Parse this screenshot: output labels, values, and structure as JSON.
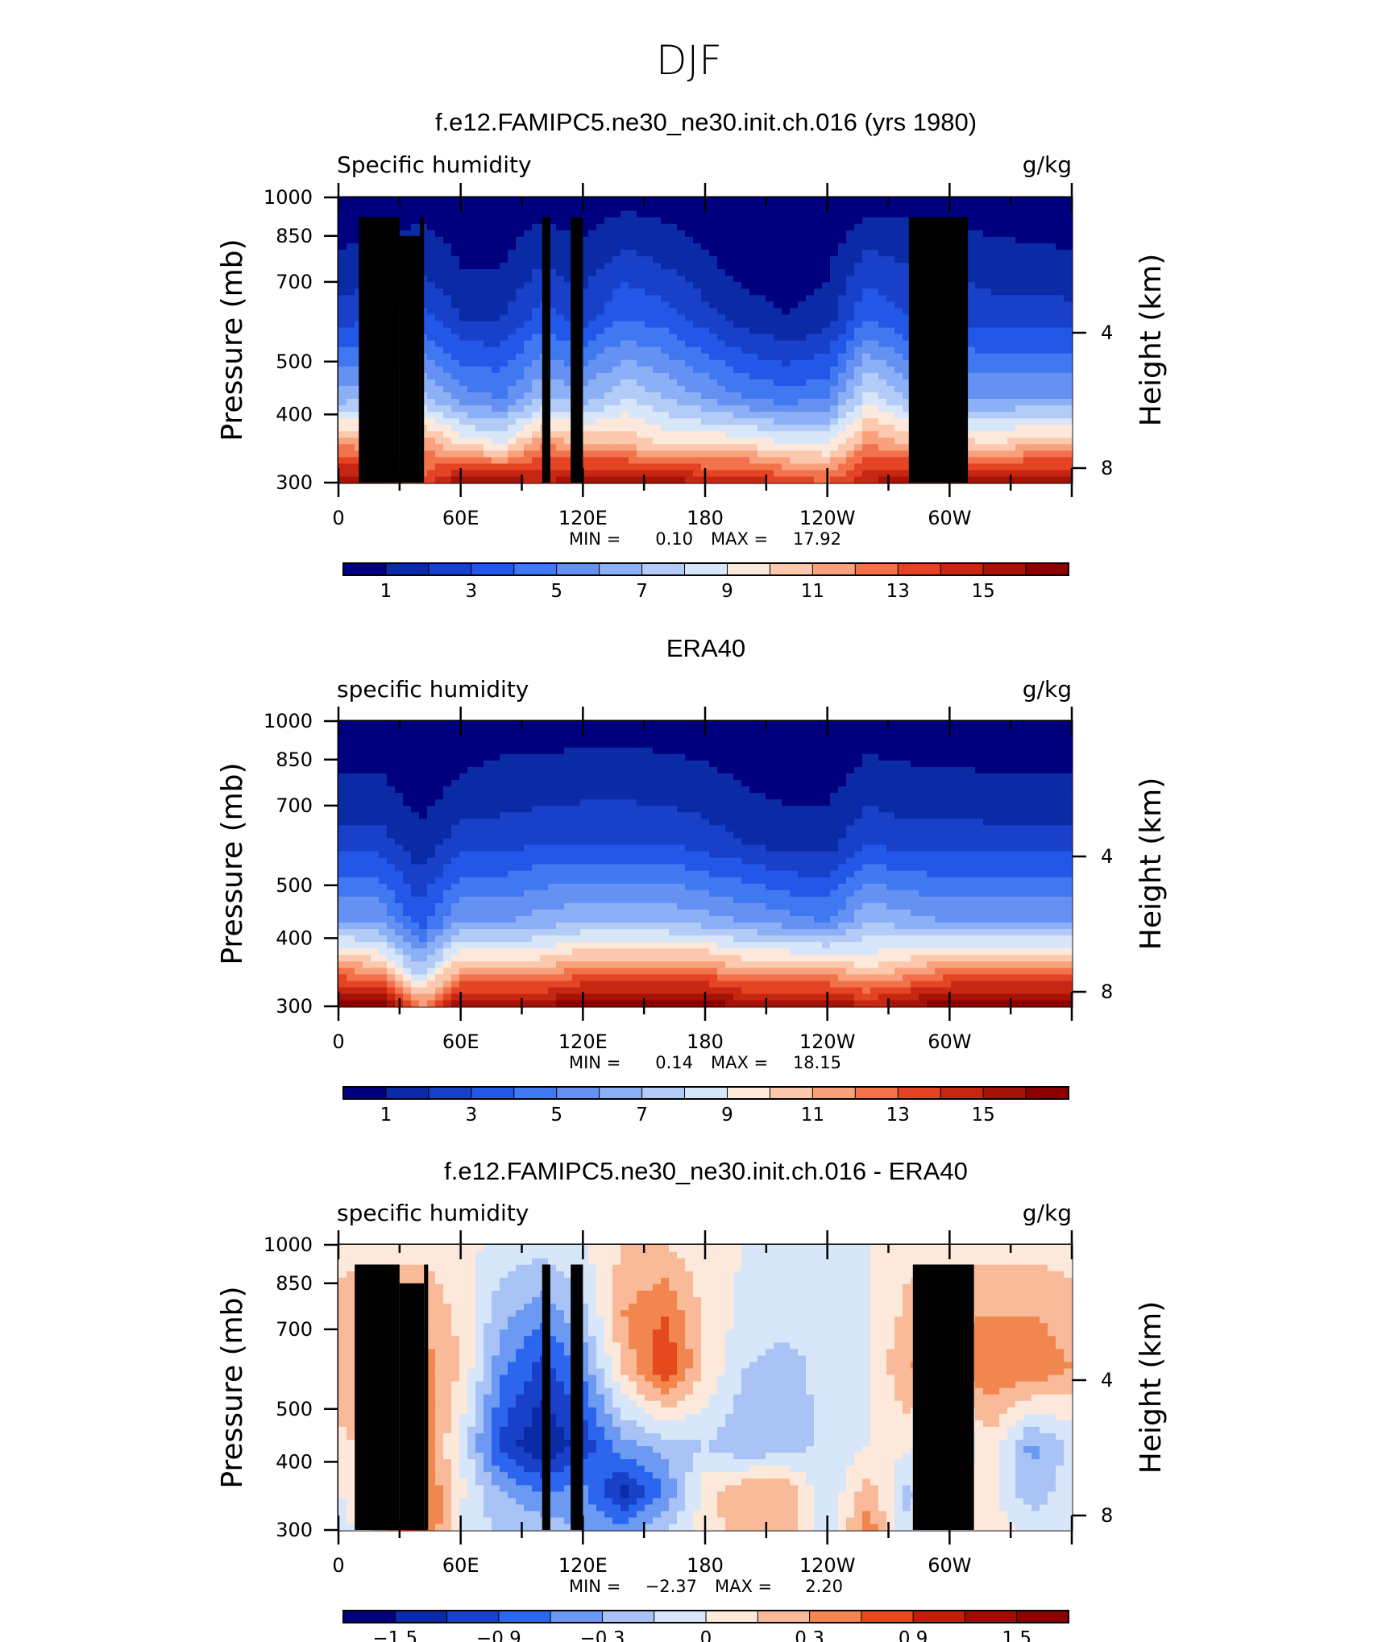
{
  "page": {
    "title": "DJF"
  },
  "colors": {
    "abs_scale": [
      "#00007f",
      "#0a2aa6",
      "#1840c8",
      "#2257e8",
      "#3f78f0",
      "#6592f2",
      "#8bb0f5",
      "#b3cbf7",
      "#d8e6fa",
      "#fde9dc",
      "#fcc8ae",
      "#f9a07c",
      "#f2724c",
      "#e54424",
      "#c72612",
      "#a51208",
      "#8b0000"
    ],
    "diff_scale": [
      "#00007f",
      "#0a2aa6",
      "#1840c8",
      "#2c66ee",
      "#6c99f2",
      "#a9c3f6",
      "#d8e6fa",
      "#fde9dc",
      "#f8ba98",
      "#f2864f",
      "#e5491c",
      "#c0200b",
      "#a00d05",
      "#8b0000"
    ]
  },
  "panels": [
    {
      "title": "f.e12.FAMIPC5.ne30_ne30.init.ch.016 (yrs 1980)",
      "left_string": "Specific humidity",
      "right_string": "g/kg",
      "ylabel": "Pressure (mb)",
      "y2label": "Height (km)",
      "y_ticks": [
        "300",
        "400",
        "500",
        "700",
        "850",
        "1000"
      ],
      "y2_ticks": [
        "8",
        "4"
      ],
      "x_ticks": [
        "0",
        "60E",
        "120E",
        "180",
        "120W",
        "60W"
      ],
      "stats": {
        "min_label": "MIN =",
        "min": "0.10",
        "max_label": "MAX =",
        "max": "17.92"
      },
      "colorbar_labels": [
        "1",
        "3",
        "5",
        "7",
        "9",
        "11",
        "13",
        "15"
      ],
      "has_topography": true
    },
    {
      "title": "ERA40",
      "left_string": "specific humidity",
      "right_string": "g/kg",
      "ylabel": "Pressure (mb)",
      "y2label": "Height (km)",
      "y_ticks": [
        "300",
        "400",
        "500",
        "700",
        "850",
        "1000"
      ],
      "y2_ticks": [
        "8",
        "4"
      ],
      "x_ticks": [
        "0",
        "60E",
        "120E",
        "180",
        "120W",
        "60W"
      ],
      "stats": {
        "min_label": "MIN =",
        "min": "0.14",
        "max_label": "MAX =",
        "max": "18.15"
      },
      "colorbar_labels": [
        "1",
        "3",
        "5",
        "7",
        "9",
        "11",
        "13",
        "15"
      ],
      "has_topography": false
    },
    {
      "title": "f.e12.FAMIPC5.ne30_ne30.init.ch.016 - ERA40",
      "left_string": "specific humidity",
      "right_string": "g/kg",
      "ylabel": "Pressure (mb)",
      "y2label": "Height (km)",
      "y_ticks": [
        "300",
        "400",
        "500",
        "700",
        "850",
        "1000"
      ],
      "y2_ticks": [
        "8",
        "4"
      ],
      "x_ticks": [
        "0",
        "60E",
        "120E",
        "180",
        "120W",
        "60W"
      ],
      "stats": {
        "min_label": "MIN =",
        "min": "−2.37",
        "max_label": "MAX =",
        "max": "2.20"
      },
      "colorbar_labels": [
        "−1.5",
        "−0.9",
        "−0.3",
        "0",
        "0.3",
        "0.9",
        "1.5"
      ],
      "has_topography": true
    }
  ],
  "chart_data": [
    {
      "type": "heatmap",
      "title": "f.e12.FAMIPC5.ne30_ne30.init.ch.016 (yrs 1980)",
      "variable": "Specific humidity",
      "units": "g/kg",
      "xlabel": "",
      "ylabel": "Pressure (mb)",
      "y2label": "Height (km)",
      "x_range": [
        0,
        360
      ],
      "y_range_mb": [
        1000,
        300
      ],
      "y_scale": "log",
      "contour_levels": [
        0,
        1,
        2,
        3,
        4,
        5,
        6,
        7,
        8,
        9,
        10,
        11,
        12,
        13,
        14,
        15,
        16
      ],
      "min": 0.1,
      "max": 17.92,
      "x": [
        0,
        20,
        40,
        60,
        80,
        100,
        120,
        140,
        160,
        180,
        200,
        220,
        240,
        260,
        280,
        300,
        320,
        340,
        360
      ],
      "y": [
        1000,
        850,
        700,
        500,
        400,
        300
      ],
      "z": [
        [
          16,
          16,
          13,
          16,
          16,
          15,
          16,
          16,
          16,
          15,
          15,
          14,
          13,
          15,
          16,
          16,
          16,
          16,
          16
        ],
        [
          12,
          11,
          12,
          10,
          9,
          12,
          11,
          11,
          10,
          10,
          10,
          9,
          9,
          12,
          11,
          11,
          10,
          11,
          11
        ],
        [
          6.5,
          7,
          7.5,
          5.5,
          5,
          7,
          6.5,
          8,
          7,
          6,
          5,
          4.5,
          5,
          8.5,
          7,
          6,
          6,
          6,
          6
        ],
        [
          2.5,
          3,
          3.5,
          2,
          2,
          3.5,
          2.5,
          4,
          3.5,
          2.5,
          1.5,
          1,
          1.5,
          4,
          3,
          3,
          2.5,
          2.5,
          2.5
        ],
        [
          1.2,
          1.5,
          1.8,
          1,
          1,
          2,
          1.5,
          2.5,
          2,
          1.2,
          0.6,
          0.5,
          0.8,
          2.5,
          2,
          1.7,
          1.5,
          1.3,
          1.2
        ],
        [
          0.4,
          0.4,
          0.5,
          0.3,
          0.3,
          0.4,
          0.4,
          0.6,
          0.5,
          0.3,
          0.2,
          0.2,
          0.2,
          0.5,
          0.5,
          0.4,
          0.4,
          0.4,
          0.4
        ]
      ],
      "topography_lon_ranges": [
        [
          10,
          30
        ],
        [
          30,
          40
        ],
        [
          40,
          42
        ],
        [
          100,
          104
        ],
        [
          114,
          120
        ],
        [
          280,
          309
        ]
      ]
    },
    {
      "type": "heatmap",
      "title": "ERA40",
      "variable": "specific humidity",
      "units": "g/kg",
      "xlabel": "",
      "ylabel": "Pressure (mb)",
      "y2label": "Height (km)",
      "x_range": [
        0,
        360
      ],
      "y_range_mb": [
        1000,
        300
      ],
      "y_scale": "log",
      "contour_levels": [
        0,
        1,
        2,
        3,
        4,
        5,
        6,
        7,
        8,
        9,
        10,
        11,
        12,
        13,
        14,
        15,
        16
      ],
      "min": 0.14,
      "max": 18.15,
      "x": [
        0,
        20,
        40,
        60,
        80,
        100,
        120,
        140,
        160,
        180,
        200,
        220,
        240,
        260,
        280,
        300,
        320,
        340,
        360
      ],
      "y": [
        1000,
        850,
        700,
        500,
        400,
        300
      ],
      "z": [
        [
          17,
          17,
          12,
          16,
          16,
          16,
          17,
          17,
          17,
          17,
          16,
          16,
          16,
          15,
          16,
          17,
          17,
          17,
          17
        ],
        [
          12,
          11,
          7,
          11,
          11,
          11,
          12,
          12,
          12,
          12,
          11,
          11,
          11,
          10,
          11,
          12,
          12,
          12,
          12
        ],
        [
          6,
          6,
          3.5,
          6,
          6,
          6.5,
          7,
          7,
          7,
          6.5,
          6,
          5.5,
          5,
          7,
          6.5,
          6,
          6,
          6,
          6
        ],
        [
          2.5,
          2.5,
          1.2,
          2.5,
          2.5,
          3,
          3,
          3,
          3,
          2.5,
          2,
          1.5,
          1.5,
          3,
          2.5,
          2.5,
          2.5,
          2.5,
          2.5
        ],
        [
          1.2,
          1.2,
          0.6,
          1.2,
          1.5,
          1.5,
          1.7,
          1.7,
          1.6,
          1.4,
          1,
          0.8,
          0.8,
          1.5,
          1.3,
          1.3,
          1.2,
          1.2,
          1.2
        ],
        [
          0.4,
          0.4,
          0.2,
          0.4,
          0.5,
          0.5,
          0.6,
          0.6,
          0.5,
          0.4,
          0.3,
          0.2,
          0.2,
          0.5,
          0.5,
          0.4,
          0.4,
          0.4,
          0.4
        ]
      ]
    },
    {
      "type": "heatmap",
      "title": "f.e12.FAMIPC5.ne30_ne30.init.ch.016 - ERA40",
      "variable": "specific humidity",
      "units": "g/kg",
      "xlabel": "",
      "ylabel": "Pressure (mb)",
      "y2label": "Height (km)",
      "x_range": [
        0,
        360
      ],
      "y_range_mb": [
        1000,
        300
      ],
      "y_scale": "log",
      "contour_levels": [
        -1.8,
        -1.5,
        -1.2,
        -0.9,
        -0.6,
        -0.3,
        0,
        0.3,
        0.6,
        0.9,
        1.2,
        1.5,
        1.8
      ],
      "min": -2.37,
      "max": 2.2,
      "x": [
        0,
        20,
        40,
        60,
        80,
        100,
        120,
        140,
        160,
        180,
        200,
        220,
        240,
        260,
        280,
        300,
        320,
        340,
        360
      ],
      "y": [
        1000,
        850,
        700,
        500,
        400,
        300
      ],
      "z": [
        [
          -0.2,
          0.4,
          1.3,
          -0.2,
          -0.3,
          -0.4,
          -0.6,
          -0.8,
          -0.3,
          0.1,
          0.5,
          0.4,
          -0.2,
          0.8,
          -0.3,
          0.1,
          0.2,
          -0.1,
          -0.2
        ],
        [
          0,
          0.3,
          1.1,
          0.1,
          -0.6,
          -0.9,
          -0.8,
          -1.6,
          -0.9,
          0.2,
          0.6,
          0.6,
          -0.3,
          0.5,
          -0.4,
          0.2,
          0.1,
          -0.5,
          -0.1
        ],
        [
          0.2,
          0.5,
          1,
          -0.1,
          -1.3,
          -1.8,
          -1.4,
          -0.7,
          -0.5,
          -0.3,
          -0.6,
          -0.5,
          -0.2,
          0,
          0.1,
          -0.5,
          0.2,
          -0.7,
          -0.2
        ],
        [
          0.5,
          0.7,
          0.8,
          0.3,
          -0.8,
          -1.3,
          -0.8,
          0.4,
          1.2,
          0.3,
          -0.3,
          -0.4,
          -0.2,
          0,
          0.6,
          0.7,
          0.9,
          0.9,
          0.6
        ],
        [
          0.4,
          0.6,
          0.6,
          0.2,
          -0.5,
          -0.8,
          -0.4,
          0.6,
          0.9,
          0.2,
          -0.1,
          -0.2,
          -0.1,
          0,
          0.4,
          0.5,
          0.6,
          0.6,
          0.4
        ],
        [
          0.2,
          0.2,
          0.2,
          0.1,
          -0.1,
          -0.2,
          0,
          0.3,
          0.3,
          0.1,
          0,
          0,
          0,
          0,
          0.2,
          0.2,
          0.2,
          0.2,
          0.2
        ]
      ],
      "topography_lon_ranges": [
        [
          8,
          30
        ],
        [
          30,
          42
        ],
        [
          42,
          44
        ],
        [
          100,
          104
        ],
        [
          114,
          120
        ],
        [
          282,
          312
        ]
      ]
    }
  ]
}
